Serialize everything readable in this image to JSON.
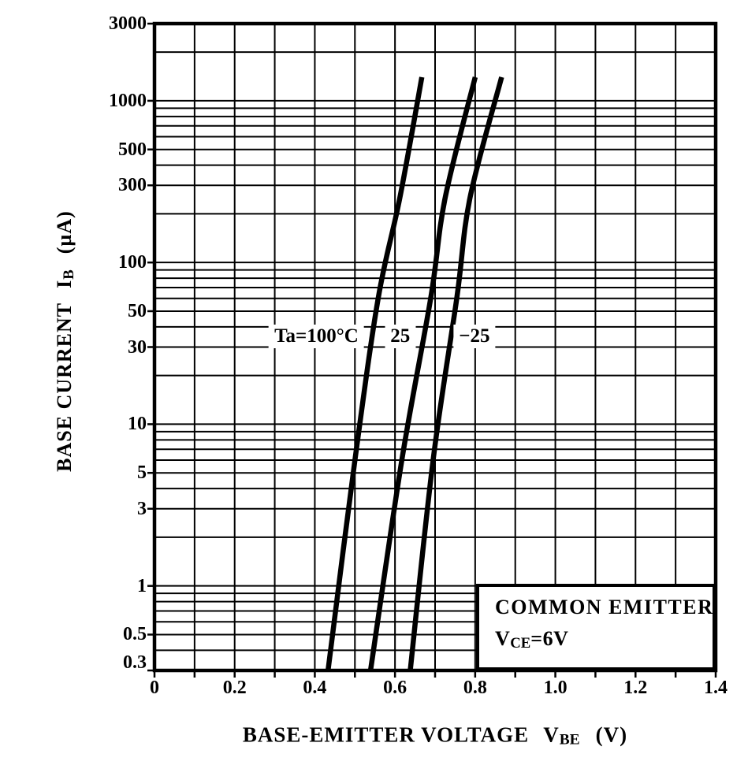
{
  "page": {
    "background": "#ffffff",
    "ink": "#000000"
  },
  "chart_data": {
    "type": "line",
    "title": "",
    "grid": "on",
    "line_color": "#000000",
    "x_axis": {
      "scale": "linear",
      "min": 0,
      "max": 1.4,
      "grid_step": 0.1,
      "label_main": "BASE-EMITTER VOLTAGE",
      "label_symbol": "V",
      "label_symbol_sub": "BE",
      "label_unit": "(V)",
      "ticks": [
        {
          "value": 0,
          "label": "0"
        },
        {
          "value": 0.2,
          "label": "0.2"
        },
        {
          "value": 0.4,
          "label": "0.4"
        },
        {
          "value": 0.6,
          "label": "0.6"
        },
        {
          "value": 0.8,
          "label": "0.8"
        },
        {
          "value": 1.0,
          "label": "1.0"
        },
        {
          "value": 1.2,
          "label": "1.2"
        },
        {
          "value": 1.4,
          "label": "1.4"
        }
      ]
    },
    "y_axis": {
      "scale": "log",
      "min": 0.3,
      "max": 3000,
      "label_main": "BASE CURRENT",
      "label_symbol": "I",
      "label_symbol_sub": "B",
      "label_unit": "(µA)",
      "ticks": [
        {
          "value": 3000,
          "label": "3000"
        },
        {
          "value": 1000,
          "label": "1000"
        },
        {
          "value": 500,
          "label": "500"
        },
        {
          "value": 300,
          "label": "300"
        },
        {
          "value": 100,
          "label": "100"
        },
        {
          "value": 50,
          "label": "50"
        },
        {
          "value": 30,
          "label": "30"
        },
        {
          "value": 10,
          "label": "10"
        },
        {
          "value": 5,
          "label": "5"
        },
        {
          "value": 3,
          "label": "3"
        },
        {
          "value": 1,
          "label": "1"
        },
        {
          "value": 0.5,
          "label": "0.5"
        },
        {
          "value": 0.3,
          "label": "0.3",
          "dy": -10
        }
      ]
    },
    "series": [
      {
        "name": "Ta=100C",
        "label": "Ta=100°C",
        "label_anchor": {
          "v": 0.404,
          "i": 35
        },
        "points": [
          [
            0.433,
            0.3
          ],
          [
            0.5,
            6
          ],
          [
            0.558,
            60
          ],
          [
            0.612,
            250
          ],
          [
            0.667,
            1400
          ]
        ]
      },
      {
        "name": "Ta=25C",
        "label": "25",
        "label_anchor": {
          "v": 0.613,
          "i": 35
        },
        "points": [
          [
            0.539,
            0.3
          ],
          [
            0.617,
            6
          ],
          [
            0.689,
            60
          ],
          [
            0.725,
            250
          ],
          [
            0.8,
            1400
          ]
        ]
      },
      {
        "name": "Ta=-25C",
        "label": "−25",
        "label_anchor": {
          "v": 0.798,
          "i": 35
        },
        "points": [
          [
            0.638,
            0.3
          ],
          [
            0.695,
            6
          ],
          [
            0.754,
            60
          ],
          [
            0.787,
            250
          ],
          [
            0.866,
            1400
          ]
        ]
      }
    ],
    "conditions": {
      "line1": "COMMON EMITTER",
      "line2_symbol": "V",
      "line2_sub": "CE",
      "line2_rest": "=6V"
    }
  }
}
